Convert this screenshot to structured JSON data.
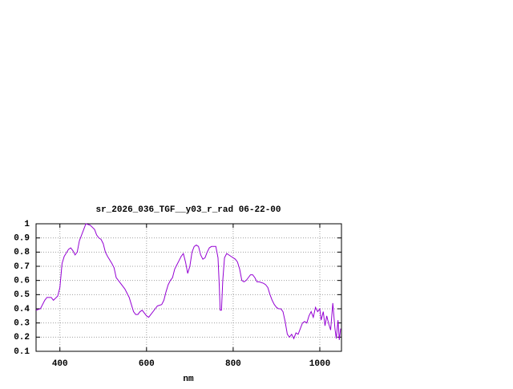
{
  "chart_data": {
    "type": "line",
    "title": "sr_2026_036_TGF__y03_r_rad 06-22-00",
    "x_label": "nm",
    "xlim": [
      345,
      1050
    ],
    "ylim": [
      0.1,
      1
    ],
    "xticks": [
      400,
      600,
      800,
      1000
    ],
    "yticks": [
      0.1,
      0.2,
      0.3,
      0.4,
      0.5,
      0.6,
      0.7,
      0.8,
      0.9,
      1
    ],
    "grid": true,
    "series": [
      {
        "color": "#9400d3",
        "x": [
          345,
          355,
          365,
          370,
          380,
          385,
          395,
          400,
          405,
          410,
          420,
          425,
          430,
          435,
          440,
          445,
          455,
          460,
          470,
          480,
          485,
          490,
          495,
          500,
          505,
          510,
          520,
          525,
          530,
          540,
          550,
          560,
          565,
          570,
          575,
          580,
          585,
          590,
          595,
          600,
          605,
          610,
          620,
          625,
          635,
          640,
          645,
          650,
          655,
          660,
          665,
          670,
          675,
          680,
          685,
          690,
          695,
          700,
          705,
          710,
          715,
          720,
          725,
          730,
          735,
          740,
          745,
          750,
          760,
          765,
          768,
          770,
          773,
          776,
          780,
          785,
          795,
          805,
          810,
          815,
          820,
          825,
          830,
          835,
          840,
          845,
          850,
          855,
          860,
          870,
          875,
          880,
          885,
          890,
          895,
          900,
          905,
          910,
          915,
          920,
          925,
          930,
          935,
          940,
          945,
          950,
          955,
          960,
          965,
          970,
          975,
          980,
          985,
          990,
          995,
          1000,
          1003,
          1008,
          1012,
          1016,
          1020,
          1025,
          1030,
          1035,
          1038,
          1042,
          1045,
          1048
        ],
        "values": [
          0.39,
          0.4,
          0.46,
          0.48,
          0.48,
          0.46,
          0.49,
          0.55,
          0.72,
          0.77,
          0.82,
          0.83,
          0.81,
          0.78,
          0.8,
          0.88,
          0.96,
          1.0,
          0.99,
          0.96,
          0.92,
          0.9,
          0.89,
          0.86,
          0.8,
          0.77,
          0.72,
          0.69,
          0.62,
          0.58,
          0.54,
          0.48,
          0.43,
          0.38,
          0.36,
          0.36,
          0.38,
          0.39,
          0.37,
          0.35,
          0.34,
          0.36,
          0.4,
          0.42,
          0.43,
          0.46,
          0.52,
          0.57,
          0.6,
          0.62,
          0.68,
          0.71,
          0.74,
          0.77,
          0.79,
          0.73,
          0.65,
          0.7,
          0.8,
          0.84,
          0.85,
          0.84,
          0.78,
          0.75,
          0.76,
          0.8,
          0.83,
          0.84,
          0.84,
          0.76,
          0.56,
          0.39,
          0.39,
          0.6,
          0.76,
          0.79,
          0.77,
          0.75,
          0.73,
          0.68,
          0.6,
          0.59,
          0.6,
          0.62,
          0.64,
          0.64,
          0.62,
          0.59,
          0.59,
          0.58,
          0.57,
          0.55,
          0.5,
          0.46,
          0.43,
          0.41,
          0.4,
          0.4,
          0.38,
          0.31,
          0.22,
          0.2,
          0.22,
          0.19,
          0.23,
          0.22,
          0.26,
          0.3,
          0.31,
          0.3,
          0.35,
          0.38,
          0.34,
          0.41,
          0.38,
          0.4,
          0.32,
          0.38,
          0.28,
          0.35,
          0.3,
          0.25,
          0.44,
          0.26,
          0.19,
          0.32,
          0.18,
          0.26
        ]
      }
    ]
  }
}
